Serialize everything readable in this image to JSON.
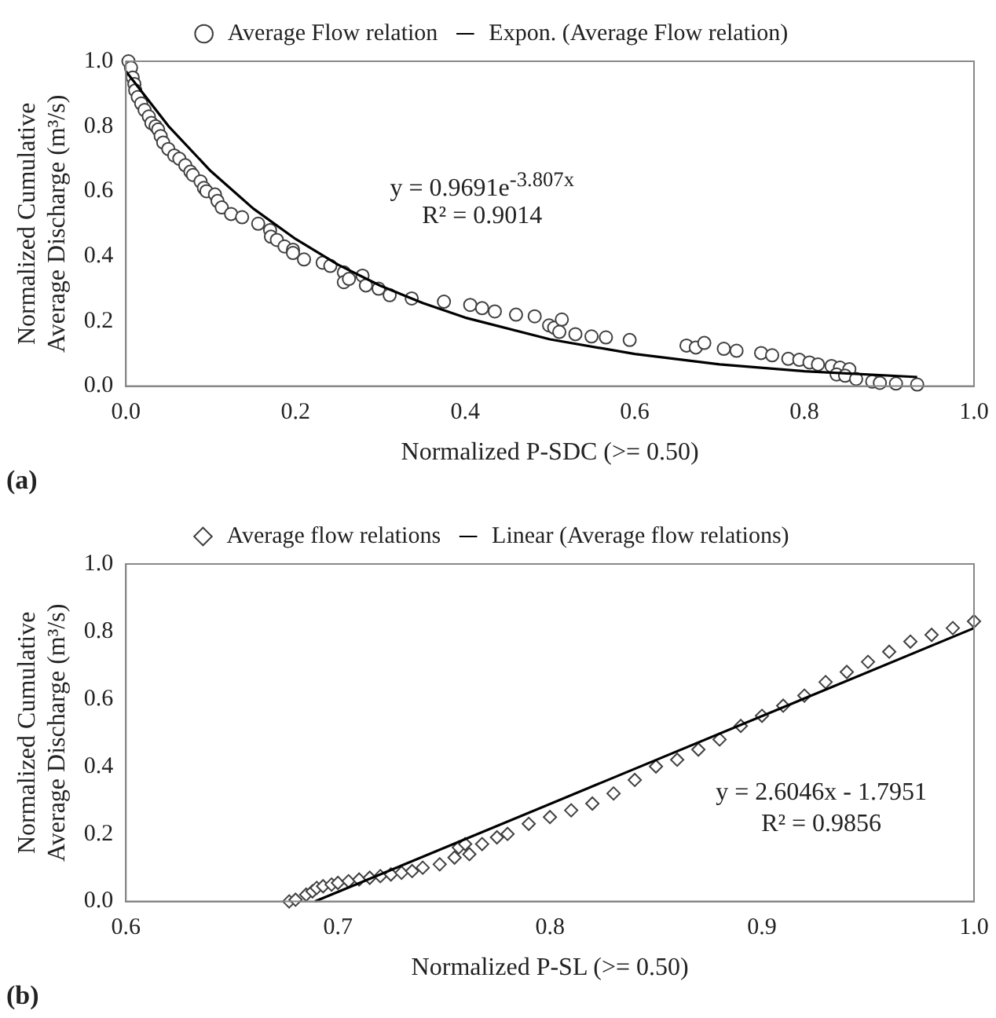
{
  "chart_data": [
    {
      "type": "scatter",
      "xlabel": "Normalized P-SDC (>= 0.50)",
      "ylabel": "Normalized Cumulative Average Discharge (m³/s)",
      "xlim": [
        0,
        1
      ],
      "ylim": [
        0,
        1
      ],
      "xticks": [
        {
          "value": 0,
          "label": "0.0"
        },
        {
          "value": 0.2,
          "label": "0.2"
        },
        {
          "value": 0.4,
          "label": "0.4"
        },
        {
          "value": 0.6,
          "label": "0.6"
        },
        {
          "value": 0.8,
          "label": "0.8"
        },
        {
          "value": 1,
          "label": "1.0"
        }
      ],
      "yticks": [
        {
          "value": 0,
          "label": "0.0"
        },
        {
          "value": 0.2,
          "label": "0.2"
        },
        {
          "value": 0.4,
          "label": "0.4"
        },
        {
          "value": 0.6,
          "label": "0.6"
        },
        {
          "value": 0.8,
          "label": "0.8"
        },
        {
          "value": 1,
          "label": "1.0"
        }
      ],
      "legend": "top",
      "grid": false,
      "series": [
        {
          "name": "Average Flow relation",
          "marker": "circle",
          "color": "#404040",
          "x": [
            0.003,
            0.006,
            0.008,
            0.01,
            0.011,
            0.014,
            0.018,
            0.022,
            0.027,
            0.03,
            0.035,
            0.038,
            0.041,
            0.044,
            0.05,
            0.057,
            0.063,
            0.07,
            0.076,
            0.079,
            0.088,
            0.092,
            0.095,
            0.105,
            0.108,
            0.113,
            0.124,
            0.137,
            0.156,
            0.17,
            0.171,
            0.178,
            0.187,
            0.197,
            0.197,
            0.21,
            0.232,
            0.241,
            0.257,
            0.257,
            0.263,
            0.279,
            0.283,
            0.298,
            0.311,
            0.337,
            0.375,
            0.406,
            0.42,
            0.435,
            0.46,
            0.482,
            0.499,
            0.505,
            0.514,
            0.511,
            0.53,
            0.549,
            0.566,
            0.594,
            0.661,
            0.672,
            0.682,
            0.705,
            0.72,
            0.749,
            0.762,
            0.781,
            0.794,
            0.806,
            0.816,
            0.832,
            0.842,
            0.853,
            0.838,
            0.848,
            0.861,
            0.88,
            0.889,
            0.908,
            0.933
          ],
          "values": [
            1.0,
            0.98,
            0.95,
            0.93,
            0.91,
            0.89,
            0.87,
            0.85,
            0.83,
            0.81,
            0.8,
            0.79,
            0.77,
            0.75,
            0.73,
            0.71,
            0.7,
            0.68,
            0.66,
            0.65,
            0.63,
            0.61,
            0.6,
            0.59,
            0.57,
            0.55,
            0.53,
            0.52,
            0.5,
            0.48,
            0.46,
            0.45,
            0.43,
            0.42,
            0.41,
            0.39,
            0.38,
            0.37,
            0.35,
            0.32,
            0.33,
            0.34,
            0.31,
            0.3,
            0.28,
            0.27,
            0.26,
            0.25,
            0.24,
            0.23,
            0.22,
            0.215,
            0.187,
            0.18,
            0.205,
            0.167,
            0.16,
            0.153,
            0.15,
            0.142,
            0.125,
            0.119,
            0.133,
            0.115,
            0.109,
            0.102,
            0.095,
            0.084,
            0.081,
            0.073,
            0.067,
            0.062,
            0.057,
            0.052,
            0.036,
            0.032,
            0.022,
            0.014,
            0.01,
            0.008,
            0.005
          ]
        },
        {
          "name": "Expon. (Average Flow relation)",
          "type": "line",
          "marker": "none",
          "line_style": "solid",
          "color": "#000000",
          "x": [
            0,
            0.05,
            0.1,
            0.15,
            0.2,
            0.25,
            0.3,
            0.35,
            0.4,
            0.5,
            0.6,
            0.7,
            0.8,
            0.933
          ],
          "values": [
            0.969,
            0.801,
            0.662,
            0.547,
            0.453,
            0.374,
            0.309,
            0.256,
            0.211,
            0.144,
            0.099,
            0.067,
            0.046,
            0.028
          ]
        }
      ],
      "annotations": [
        "(a)",
        "y = 0.9691e$^{-3.807x}$",
        "R² = 0.9014"
      ]
    },
    {
      "type": "scatter",
      "xlabel": "Normalized P-SL (>= 0.50)",
      "ylabel": "Normalized Cumulative Average Discharge (m³/s)",
      "xlim": [
        0.6,
        1
      ],
      "ylim": [
        0,
        1
      ],
      "xticks": [
        {
          "value": 0.6,
          "label": "0.6"
        },
        {
          "value": 0.7,
          "label": "0.7"
        },
        {
          "value": 0.8,
          "label": "0.8"
        },
        {
          "value": 0.9,
          "label": "0.9"
        },
        {
          "value": 1,
          "label": "1.0"
        }
      ],
      "yticks": [
        {
          "value": 0,
          "label": "0.0"
        },
        {
          "value": 0.2,
          "label": "0.2"
        },
        {
          "value": 0.4,
          "label": "0.4"
        },
        {
          "value": 0.6,
          "label": "0.6"
        },
        {
          "value": 0.8,
          "label": "0.8"
        },
        {
          "value": 1,
          "label": "1.0"
        }
      ],
      "legend": "top",
      "grid": false,
      "series": [
        {
          "name": "Average flow relations",
          "marker": "diamond",
          "color": "#404040",
          "x": [
            0.677,
            0.68,
            0.685,
            0.688,
            0.69,
            0.693,
            0.697,
            0.7,
            0.705,
            0.71,
            0.715,
            0.72,
            0.725,
            0.73,
            0.735,
            0.74,
            0.748,
            0.755,
            0.757,
            0.76,
            0.762,
            0.768,
            0.775,
            0.78,
            0.79,
            0.8,
            0.81,
            0.82,
            0.83,
            0.84,
            0.85,
            0.86,
            0.87,
            0.88,
            0.89,
            0.9,
            0.91,
            0.92,
            0.93,
            0.94,
            0.95,
            0.96,
            0.97,
            0.98,
            0.99,
            1.0
          ],
          "values": [
            0.0,
            0.005,
            0.02,
            0.03,
            0.04,
            0.045,
            0.05,
            0.055,
            0.06,
            0.065,
            0.07,
            0.075,
            0.08,
            0.085,
            0.09,
            0.1,
            0.11,
            0.13,
            0.16,
            0.17,
            0.14,
            0.17,
            0.19,
            0.2,
            0.23,
            0.25,
            0.27,
            0.29,
            0.32,
            0.36,
            0.4,
            0.42,
            0.45,
            0.48,
            0.52,
            0.55,
            0.58,
            0.61,
            0.65,
            0.68,
            0.71,
            0.74,
            0.77,
            0.79,
            0.81,
            0.83
          ]
        },
        {
          "name": "Linear (Average flow relations)",
          "type": "line",
          "marker": "none",
          "line_style": "solid",
          "color": "#000000",
          "x": [
            0.6892,
            1.0
          ],
          "values": [
            0,
            0.81
          ]
        }
      ],
      "annotations": [
        "(b)",
        "y = 2.6046x - 1.7951",
        "R² = 0.9856"
      ]
    }
  ]
}
